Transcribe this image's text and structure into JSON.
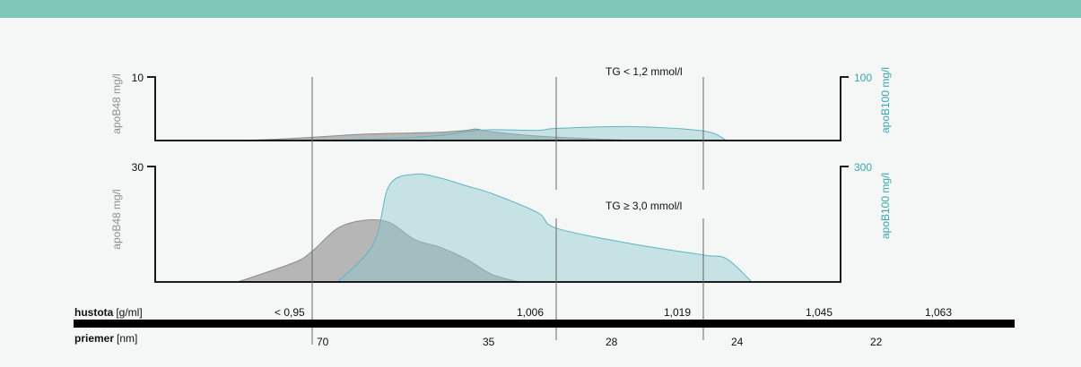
{
  "colors": {
    "header": "#7fc8b7",
    "background": "#f4f7f6",
    "apoB48": "#9a9a9a",
    "apoB100": "#5fb4c1",
    "gray_text": "#8e8e8e",
    "teal_text": "#3aa6ab"
  },
  "chart_data": [
    {
      "type": "area",
      "annotation": "TG < 1,2 mmol/l",
      "left_axis": {
        "label": "apoB48 mg/l",
        "ylim": [
          0,
          10
        ],
        "tick": "10"
      },
      "right_axis": {
        "label": "apoB100 mg/l",
        "ylim": [
          0,
          100
        ],
        "tick": "100"
      },
      "x_domain_diameter_nm": "70 → 22",
      "series": [
        {
          "name": "apoB48",
          "x": [
            90,
            80,
            70,
            60,
            50,
            45,
            40,
            38,
            35,
            30,
            26
          ],
          "y": [
            0,
            0.2,
            0.5,
            1.0,
            1.2,
            1.3,
            1.6,
            1.8,
            1.4,
            0.7,
            0
          ]
        },
        {
          "name": "apoB100",
          "x": [
            70,
            55,
            45,
            40,
            35,
            30,
            28,
            26,
            24,
            22
          ],
          "y": [
            0,
            3,
            8,
            14,
            17,
            16,
            19,
            22,
            15,
            0
          ]
        }
      ]
    },
    {
      "type": "area",
      "annotation": "TG ≥ 3,0 mmol/l",
      "left_axis": {
        "label": "apoB48 mg/l",
        "ylim": [
          0,
          30
        ],
        "tick": "30"
      },
      "right_axis": {
        "label": "apoB100 mg/l",
        "ylim": [
          0,
          300
        ],
        "tick": "300"
      },
      "series": [
        {
          "name": "apoB48",
          "x": [
            90,
            75,
            70,
            65,
            60,
            55,
            50,
            45,
            40,
            35,
            32
          ],
          "y": [
            0,
            5,
            8,
            14,
            16,
            15.5,
            11,
            9,
            6,
            2,
            0
          ]
        },
        {
          "name": "apoB100",
          "x": [
            65,
            58,
            55,
            50,
            45,
            40,
            35,
            30,
            28,
            26,
            24,
            22,
            20
          ],
          "y": [
            0,
            100,
            250,
            280,
            270,
            250,
            230,
            180,
            140,
            100,
            70,
            60,
            0
          ]
        }
      ]
    }
  ],
  "scale": {
    "density_label_bold": "hustota",
    "density_unit": "[g/ml]",
    "density_ticks": [
      "< 0,95",
      "1,006",
      "1,019",
      "1,045",
      "1,063"
    ],
    "diameter_label_bold": "priemer",
    "diameter_unit": "[nm]",
    "diameter_ticks": [
      "70",
      "35",
      "28",
      "24",
      "22"
    ]
  }
}
